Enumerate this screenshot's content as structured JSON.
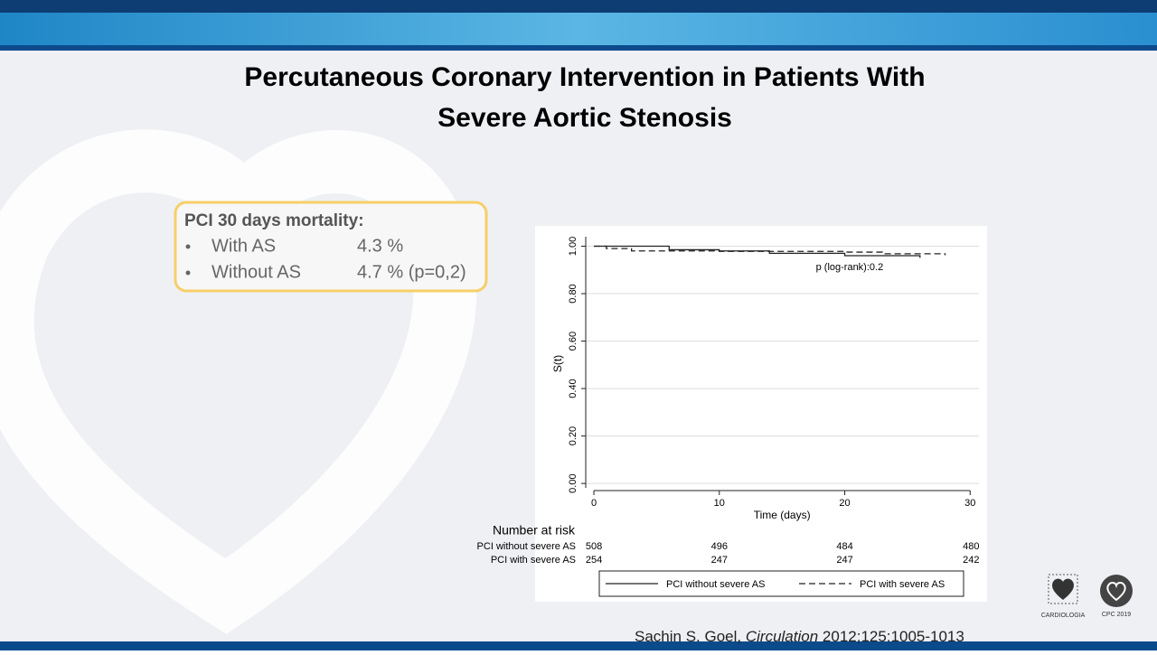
{
  "slide": {
    "title_lines": [
      "Percutaneous Coronary Intervention in Patients With",
      "Severe Aortic Stenosis"
    ]
  },
  "summary": {
    "heading": "PCI 30 days mortality:",
    "items": [
      {
        "label": "With AS",
        "value": "4.3 %"
      },
      {
        "label": "Without AS",
        "value": "4.7 % (p=0,2)"
      }
    ]
  },
  "citation": {
    "author": "Sachin S. Goel,",
    "journal": "Circulation",
    "ref": "2012;125:1005-1013"
  },
  "logos": {
    "society": "CARDIOLOGIA",
    "congress": "CPC 2019"
  },
  "chart_data": {
    "type": "step",
    "ylabel": "S(t)",
    "xlabel": "Time (days)",
    "annotation": "p (log-rank):0.2",
    "xlim": [
      -0.65,
      30.7
    ],
    "ylim": [
      -0.03,
      1.04
    ],
    "xticks": [
      0,
      10,
      20,
      30
    ],
    "yticks": [
      {
        "value": 0,
        "label": "0.00"
      },
      {
        "value": 0.2,
        "label": "0.20"
      },
      {
        "value": 0.4,
        "label": "0.40"
      },
      {
        "value": 0.6,
        "label": "0.60"
      },
      {
        "value": 0.8,
        "label": "0.80"
      },
      {
        "value": 1,
        "label": "1.00"
      }
    ],
    "grid": true,
    "series": [
      {
        "name": "PCI without severe AS",
        "color": "#222222",
        "dash": "solid",
        "x": [
          0,
          6,
          10,
          14,
          20,
          26
        ],
        "values": [
          1.0,
          0.985,
          0.98,
          0.97,
          0.96,
          0.951
        ]
      },
      {
        "name": "PCI with severe AS",
        "color": "#222222",
        "dash": "dashed",
        "x": [
          0,
          1,
          3,
          10,
          20,
          23,
          28
        ],
        "values": [
          1.0,
          0.99,
          0.98,
          0.978,
          0.975,
          0.968,
          0.962
        ]
      }
    ],
    "risk_table": {
      "title": "Number at risk",
      "rows": [
        {
          "label": "PCI without severe AS",
          "values": [
            508,
            496,
            484,
            480
          ]
        },
        {
          "label": "PCI with severe AS",
          "values": [
            254,
            247,
            247,
            242
          ]
        }
      ]
    }
  }
}
